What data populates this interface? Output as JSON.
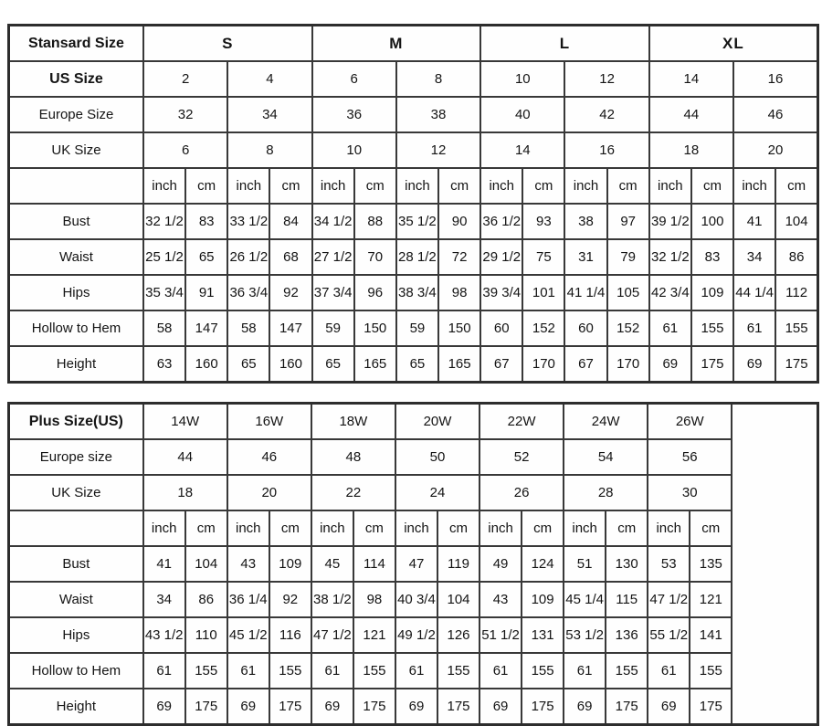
{
  "page": {
    "description": "Dress size chart with standard and plus size tables",
    "background_color": "#ffffff",
    "border_color": "#383838",
    "text_color": "#141414"
  },
  "chart_data": [
    {
      "type": "table",
      "title": "Stansard Size",
      "layout": {
        "label_w": 147,
        "unit_cols": 16,
        "unit_w": 46,
        "trail_w": 0
      },
      "rows": [
        {
          "cells": [
            {
              "t": "Stansard Size",
              "b": 1,
              "n": "standard-size-title"
            },
            {
              "t": "S",
              "cs": 4,
              "g": 1,
              "n": "size-group-s"
            },
            {
              "t": "M",
              "cs": 4,
              "g": 1,
              "n": "size-group-m"
            },
            {
              "t": "L",
              "cs": 4,
              "g": 1,
              "n": "size-group-l"
            },
            {
              "t": "XL",
              "cs": 4,
              "g": 1,
              "n": "size-group-xl"
            }
          ]
        },
        {
          "cells": [
            {
              "t": "US Size",
              "b": 1,
              "n": "row-label-us-size"
            },
            {
              "t": "2",
              "cs": 2
            },
            {
              "t": "4",
              "cs": 2
            },
            {
              "t": "6",
              "cs": 2
            },
            {
              "t": "8",
              "cs": 2
            },
            {
              "t": "10",
              "cs": 2
            },
            {
              "t": "12",
              "cs": 2
            },
            {
              "t": "14",
              "cs": 2
            },
            {
              "t": "16",
              "cs": 2
            }
          ]
        },
        {
          "cells": [
            {
              "t": "Europe Size",
              "n": "row-label-europe-size"
            },
            {
              "t": "32",
              "cs": 2
            },
            {
              "t": "34",
              "cs": 2
            },
            {
              "t": "36",
              "cs": 2
            },
            {
              "t": "38",
              "cs": 2
            },
            {
              "t": "40",
              "cs": 2
            },
            {
              "t": "42",
              "cs": 2
            },
            {
              "t": "44",
              "cs": 2
            },
            {
              "t": "46",
              "cs": 2
            }
          ]
        },
        {
          "cells": [
            {
              "t": "UK Size",
              "n": "row-label-uk-size"
            },
            {
              "t": "6",
              "cs": 2
            },
            {
              "t": "8",
              "cs": 2
            },
            {
              "t": "10",
              "cs": 2
            },
            {
              "t": "12",
              "cs": 2
            },
            {
              "t": "14",
              "cs": 2
            },
            {
              "t": "16",
              "cs": 2
            },
            {
              "t": "18",
              "cs": 2
            },
            {
              "t": "20",
              "cs": 2
            }
          ]
        },
        {
          "cells": [
            {
              "t": "",
              "n": "unit-row-spacer"
            },
            {
              "t": "inch"
            },
            {
              "t": "cm"
            },
            {
              "t": "inch"
            },
            {
              "t": "cm"
            },
            {
              "t": "inch"
            },
            {
              "t": "cm"
            },
            {
              "t": "inch"
            },
            {
              "t": "cm"
            },
            {
              "t": "inch"
            },
            {
              "t": "cm"
            },
            {
              "t": "inch"
            },
            {
              "t": "cm"
            },
            {
              "t": "inch"
            },
            {
              "t": "cm"
            },
            {
              "t": "inch"
            },
            {
              "t": "cm"
            }
          ]
        },
        {
          "cells": [
            {
              "t": "Bust",
              "n": "row-label-bust"
            },
            {
              "t": "32 1/2"
            },
            {
              "t": "83"
            },
            {
              "t": "33 1/2"
            },
            {
              "t": "84"
            },
            {
              "t": "34 1/2"
            },
            {
              "t": "88"
            },
            {
              "t": "35 1/2"
            },
            {
              "t": "90"
            },
            {
              "t": "36 1/2"
            },
            {
              "t": "93"
            },
            {
              "t": "38"
            },
            {
              "t": "97"
            },
            {
              "t": "39 1/2"
            },
            {
              "t": "100"
            },
            {
              "t": "41"
            },
            {
              "t": "104"
            }
          ]
        },
        {
          "cells": [
            {
              "t": "Waist",
              "n": "row-label-waist"
            },
            {
              "t": "25 1/2"
            },
            {
              "t": "65"
            },
            {
              "t": "26 1/2"
            },
            {
              "t": "68"
            },
            {
              "t": "27 1/2"
            },
            {
              "t": "70"
            },
            {
              "t": "28 1/2"
            },
            {
              "t": "72"
            },
            {
              "t": "29 1/2"
            },
            {
              "t": "75"
            },
            {
              "t": "31"
            },
            {
              "t": "79"
            },
            {
              "t": "32 1/2"
            },
            {
              "t": "83"
            },
            {
              "t": "34"
            },
            {
              "t": "86"
            }
          ]
        },
        {
          "cells": [
            {
              "t": "Hips",
              "n": "row-label-hips"
            },
            {
              "t": "35 3/4"
            },
            {
              "t": "91"
            },
            {
              "t": "36 3/4"
            },
            {
              "t": "92"
            },
            {
              "t": "37 3/4"
            },
            {
              "t": "96"
            },
            {
              "t": "38 3/4"
            },
            {
              "t": "98"
            },
            {
              "t": "39 3/4"
            },
            {
              "t": "101"
            },
            {
              "t": "41 1/4"
            },
            {
              "t": "105"
            },
            {
              "t": "42 3/4"
            },
            {
              "t": "109"
            },
            {
              "t": "44 1/4"
            },
            {
              "t": "112"
            }
          ]
        },
        {
          "cells": [
            {
              "t": "Hollow to Hem",
              "n": "row-label-hollow-to-hem"
            },
            {
              "t": "58"
            },
            {
              "t": "147"
            },
            {
              "t": "58"
            },
            {
              "t": "147"
            },
            {
              "t": "59"
            },
            {
              "t": "150"
            },
            {
              "t": "59"
            },
            {
              "t": "150"
            },
            {
              "t": "60"
            },
            {
              "t": "152"
            },
            {
              "t": "60"
            },
            {
              "t": "152"
            },
            {
              "t": "61"
            },
            {
              "t": "155"
            },
            {
              "t": "61"
            },
            {
              "t": "155"
            }
          ]
        },
        {
          "cells": [
            {
              "t": "Height",
              "n": "row-label-height"
            },
            {
              "t": "63"
            },
            {
              "t": "160"
            },
            {
              "t": "65"
            },
            {
              "t": "160"
            },
            {
              "t": "65"
            },
            {
              "t": "165"
            },
            {
              "t": "65"
            },
            {
              "t": "165"
            },
            {
              "t": "67"
            },
            {
              "t": "170"
            },
            {
              "t": "67"
            },
            {
              "t": "170"
            },
            {
              "t": "69"
            },
            {
              "t": "175"
            },
            {
              "t": "69"
            },
            {
              "t": "175"
            }
          ]
        }
      ]
    },
    {
      "type": "table",
      "title": "Plus Size(US)",
      "layout": {
        "label_w": 147,
        "unit_cols": 14,
        "unit_w": 46,
        "trail_w": 94
      },
      "rows": [
        {
          "cells": [
            {
              "t": "Plus Size(US)",
              "b": 1,
              "n": "plus-size-title"
            },
            {
              "t": "14W",
              "cs": 2
            },
            {
              "t": "16W",
              "cs": 2
            },
            {
              "t": "18W",
              "cs": 2
            },
            {
              "t": "20W",
              "cs": 2
            },
            {
              "t": "22W",
              "cs": 2
            },
            {
              "t": "24W",
              "cs": 2
            },
            {
              "t": "26W",
              "cs": 2
            },
            {
              "t": "",
              "rs": 9,
              "n": "empty-trailing-cell"
            }
          ]
        },
        {
          "cells": [
            {
              "t": "Europe size",
              "n": "row-label-europe-size"
            },
            {
              "t": "44",
              "cs": 2
            },
            {
              "t": "46",
              "cs": 2
            },
            {
              "t": "48",
              "cs": 2
            },
            {
              "t": "50",
              "cs": 2
            },
            {
              "t": "52",
              "cs": 2
            },
            {
              "t": "54",
              "cs": 2
            },
            {
              "t": "56",
              "cs": 2
            }
          ]
        },
        {
          "cells": [
            {
              "t": "UK Size",
              "n": "row-label-uk-size"
            },
            {
              "t": "18",
              "cs": 2
            },
            {
              "t": "20",
              "cs": 2
            },
            {
              "t": "22",
              "cs": 2
            },
            {
              "t": "24",
              "cs": 2
            },
            {
              "t": "26",
              "cs": 2
            },
            {
              "t": "28",
              "cs": 2
            },
            {
              "t": "30",
              "cs": 2
            }
          ]
        },
        {
          "cells": [
            {
              "t": "",
              "n": "unit-row-spacer"
            },
            {
              "t": "inch"
            },
            {
              "t": "cm"
            },
            {
              "t": "inch"
            },
            {
              "t": "cm"
            },
            {
              "t": "inch"
            },
            {
              "t": "cm"
            },
            {
              "t": "inch"
            },
            {
              "t": "cm"
            },
            {
              "t": "inch"
            },
            {
              "t": "cm"
            },
            {
              "t": "inch"
            },
            {
              "t": "cm"
            },
            {
              "t": "inch"
            },
            {
              "t": "cm"
            }
          ]
        },
        {
          "cells": [
            {
              "t": "Bust",
              "n": "row-label-bust"
            },
            {
              "t": "41"
            },
            {
              "t": "104"
            },
            {
              "t": "43"
            },
            {
              "t": "109"
            },
            {
              "t": "45"
            },
            {
              "t": "114"
            },
            {
              "t": "47"
            },
            {
              "t": "119"
            },
            {
              "t": "49"
            },
            {
              "t": "124"
            },
            {
              "t": "51"
            },
            {
              "t": "130"
            },
            {
              "t": "53"
            },
            {
              "t": "135"
            }
          ]
        },
        {
          "cells": [
            {
              "t": "Waist",
              "n": "row-label-waist"
            },
            {
              "t": "34"
            },
            {
              "t": "86"
            },
            {
              "t": "36 1/4"
            },
            {
              "t": "92"
            },
            {
              "t": "38 1/2"
            },
            {
              "t": "98"
            },
            {
              "t": "40 3/4"
            },
            {
              "t": "104"
            },
            {
              "t": "43"
            },
            {
              "t": "109"
            },
            {
              "t": "45 1/4"
            },
            {
              "t": "115"
            },
            {
              "t": "47 1/2"
            },
            {
              "t": "121"
            }
          ]
        },
        {
          "cells": [
            {
              "t": "Hips",
              "n": "row-label-hips"
            },
            {
              "t": "43 1/2"
            },
            {
              "t": "110"
            },
            {
              "t": "45 1/2"
            },
            {
              "t": "116"
            },
            {
              "t": "47 1/2"
            },
            {
              "t": "121"
            },
            {
              "t": "49 1/2"
            },
            {
              "t": "126"
            },
            {
              "t": "51 1/2"
            },
            {
              "t": "131"
            },
            {
              "t": "53 1/2"
            },
            {
              "t": "136"
            },
            {
              "t": "55 1/2"
            },
            {
              "t": "141"
            }
          ]
        },
        {
          "cells": [
            {
              "t": "Hollow to Hem",
              "n": "row-label-hollow-to-hem"
            },
            {
              "t": "61"
            },
            {
              "t": "155"
            },
            {
              "t": "61"
            },
            {
              "t": "155"
            },
            {
              "t": "61"
            },
            {
              "t": "155"
            },
            {
              "t": "61"
            },
            {
              "t": "155"
            },
            {
              "t": "61"
            },
            {
              "t": "155"
            },
            {
              "t": "61"
            },
            {
              "t": "155"
            },
            {
              "t": "61"
            },
            {
              "t": "155"
            }
          ]
        },
        {
          "cells": [
            {
              "t": "Height",
              "n": "row-label-height"
            },
            {
              "t": "69"
            },
            {
              "t": "175"
            },
            {
              "t": "69"
            },
            {
              "t": "175"
            },
            {
              "t": "69"
            },
            {
              "t": "175"
            },
            {
              "t": "69"
            },
            {
              "t": "175"
            },
            {
              "t": "69"
            },
            {
              "t": "175"
            },
            {
              "t": "69"
            },
            {
              "t": "175"
            },
            {
              "t": "69"
            },
            {
              "t": "175"
            }
          ]
        }
      ]
    }
  ]
}
